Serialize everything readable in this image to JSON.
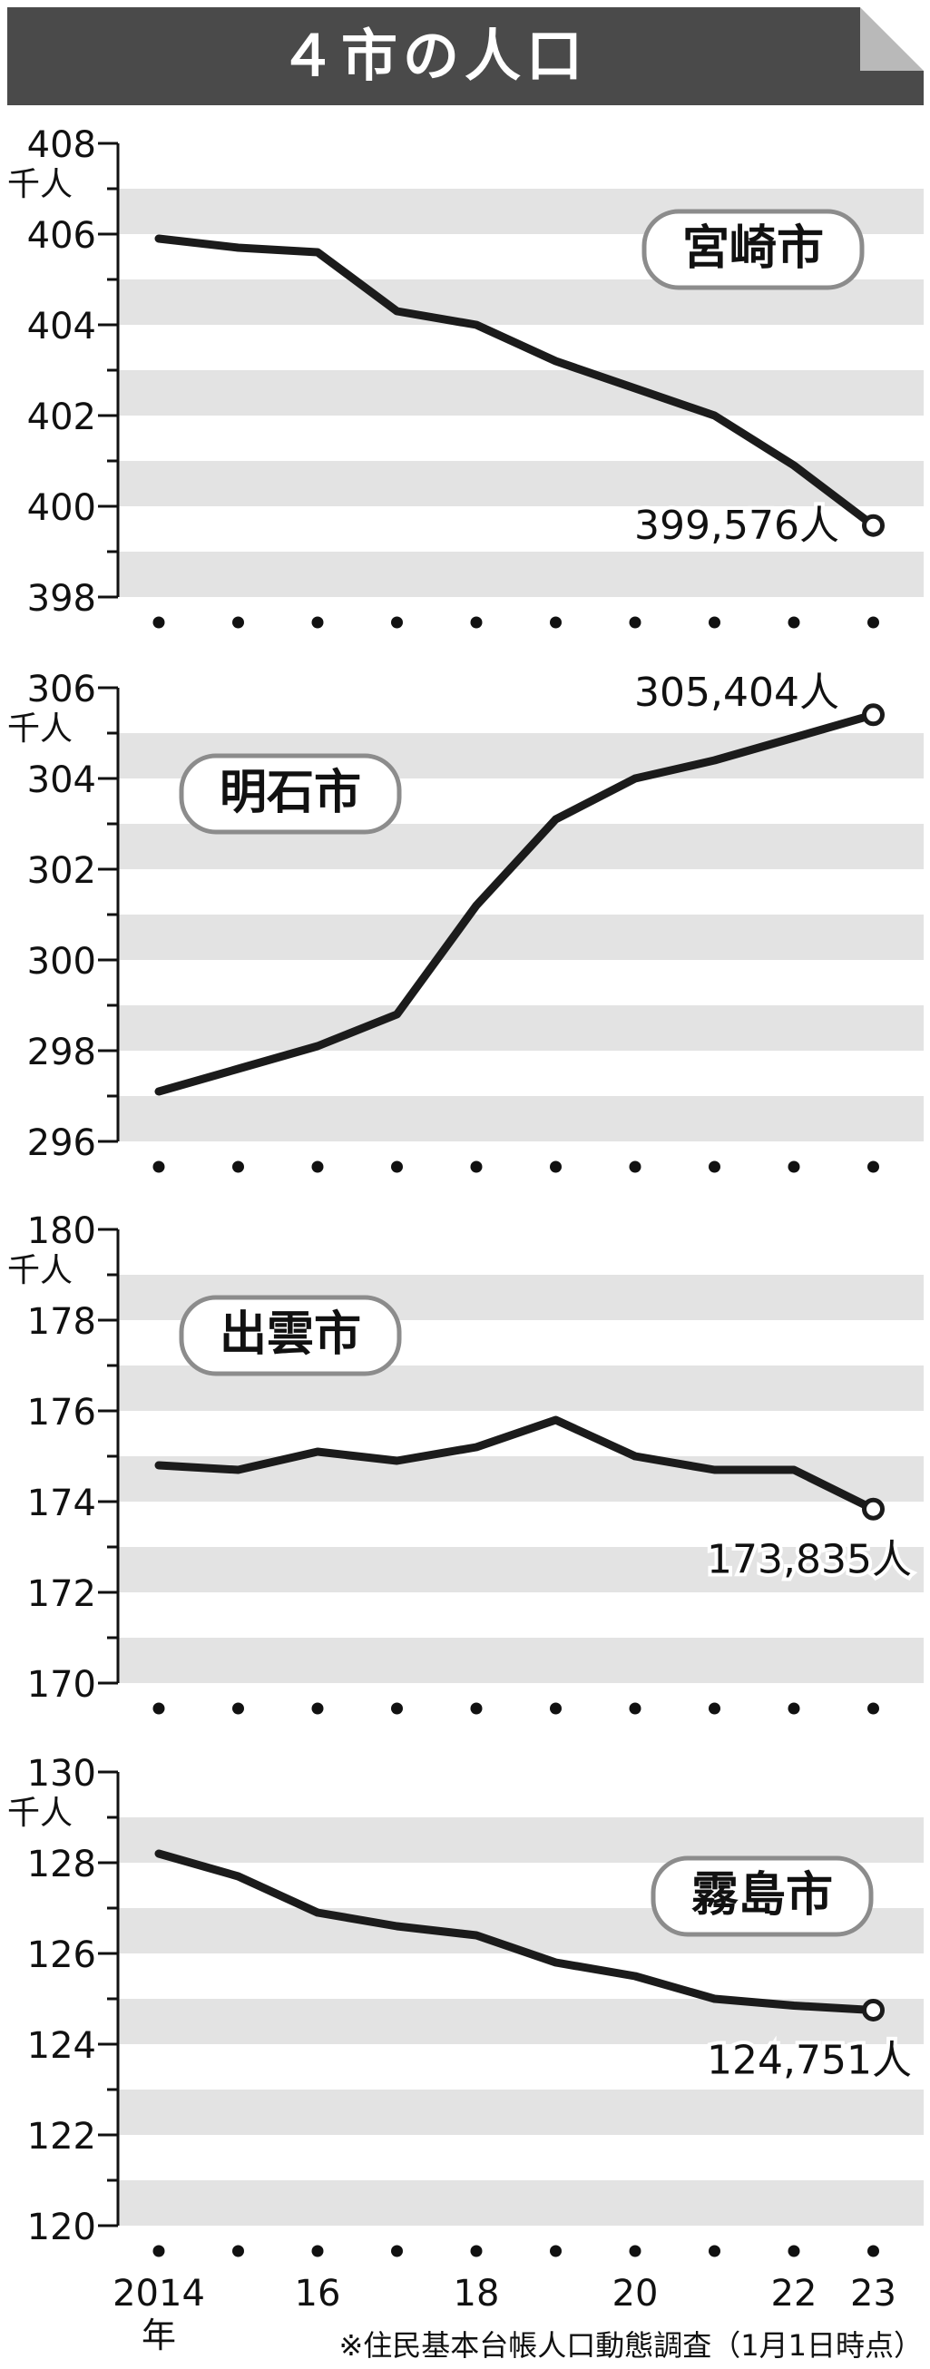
{
  "title": "４市の人口",
  "note": "※住民基本台帳人口動態調査（1月1日時点）",
  "colors": {
    "title_bg": "#4a4a4a",
    "band": "#e3e3e3",
    "line": "#1b1b1b"
  },
  "chart_data": [
    {
      "type": "line",
      "name": "宮崎市",
      "unit": "千人",
      "x": [
        "2014",
        "2015",
        "2016",
        "2017",
        "2018",
        "2019",
        "2020",
        "2021",
        "2022",
        "2023"
      ],
      "values": [
        405.9,
        405.7,
        405.6,
        404.3,
        404.0,
        403.2,
        402.6,
        402.0,
        400.9,
        399.576
      ],
      "ylim": [
        398,
        408
      ],
      "yticks": [
        "408",
        "406",
        "404",
        "402",
        "400",
        "398"
      ],
      "end_label": "399,576人",
      "label_pos": "top-right"
    },
    {
      "type": "line",
      "name": "明石市",
      "unit": "千人",
      "x": [
        "2014",
        "2015",
        "2016",
        "2017",
        "2018",
        "2019",
        "2020",
        "2021",
        "2022",
        "2023"
      ],
      "values": [
        297.1,
        297.6,
        298.1,
        298.8,
        301.2,
        303.1,
        304.0,
        304.4,
        304.9,
        305.404
      ],
      "ylim": [
        296,
        306
      ],
      "yticks": [
        "306",
        "304",
        "302",
        "300",
        "298",
        "296"
      ],
      "end_label": "305,404人",
      "label_pos": "top-left"
    },
    {
      "type": "line",
      "name": "出雲市",
      "unit": "千人",
      "x": [
        "2014",
        "2015",
        "2016",
        "2017",
        "2018",
        "2019",
        "2020",
        "2021",
        "2022",
        "2023"
      ],
      "values": [
        174.8,
        174.7,
        175.1,
        174.9,
        175.2,
        175.8,
        175.0,
        174.7,
        174.7,
        173.835
      ],
      "ylim": [
        170,
        180
      ],
      "yticks": [
        "180",
        "178",
        "176",
        "174",
        "172",
        "170"
      ],
      "end_label": "173,835人",
      "label_pos": "top-left"
    },
    {
      "type": "line",
      "name": "霧島市",
      "unit": "千人",
      "x": [
        "2014",
        "2015",
        "2016",
        "2017",
        "2018",
        "2019",
        "2020",
        "2021",
        "2022",
        "2023"
      ],
      "values": [
        128.2,
        127.7,
        126.9,
        126.6,
        126.4,
        125.8,
        125.5,
        125.0,
        124.85,
        124.751
      ],
      "ylim": [
        120,
        130
      ],
      "yticks": [
        "130",
        "128",
        "126",
        "124",
        "122",
        "120"
      ],
      "end_label": "124,751人",
      "label_pos": "top-right"
    }
  ],
  "x_axis": {
    "tick_labels": [
      "2014",
      "16",
      "18",
      "20",
      "22",
      "23"
    ],
    "tick_index": [
      0,
      2,
      4,
      6,
      8,
      9
    ],
    "first_suffix": "年"
  }
}
